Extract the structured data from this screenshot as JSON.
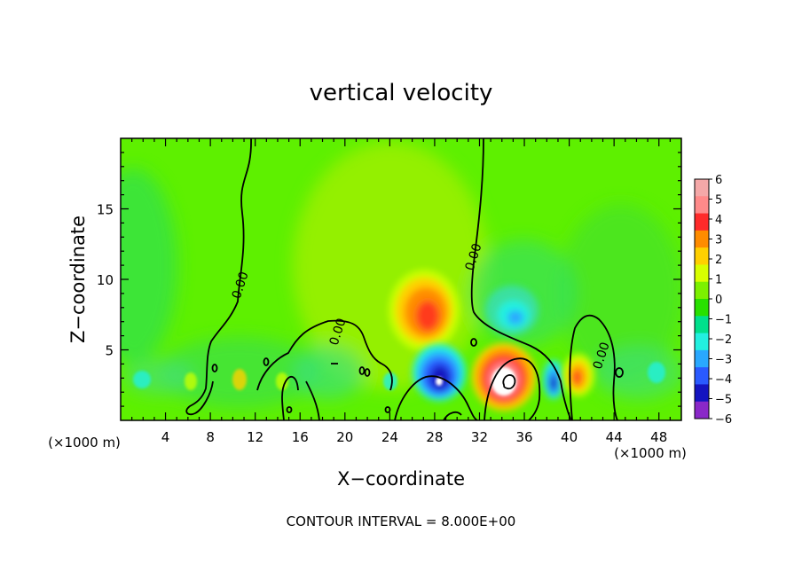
{
  "chart_data": {
    "type": "heatmap",
    "title": "vertical velocity",
    "xlabel": "X−coordinate",
    "ylabel": "Z−coordinate",
    "x_unit_left": "(×1000 m)",
    "x_unit_right": "(×1000 m)",
    "xlim": [
      0,
      50
    ],
    "ylim": [
      0,
      20
    ],
    "xticks": [
      4,
      8,
      12,
      16,
      20,
      24,
      28,
      32,
      36,
      40,
      44,
      48
    ],
    "yticks": [
      5,
      10,
      15
    ],
    "contour_labels": [
      {
        "text": "0.00",
        "x": 11,
        "y": 9.5
      },
      {
        "text": "0.00",
        "x": 19.7,
        "y": 6.2
      },
      {
        "text": "0.00",
        "x": 31.8,
        "y": 11.5
      },
      {
        "text": "0.00",
        "x": 43.2,
        "y": 4.5
      }
    ],
    "footnote": "CONTOUR INTERVAL = 8.000E+00",
    "colorbar": {
      "levels": [
        "6",
        "5",
        "4",
        "3",
        "2",
        "1",
        "0",
        "−1",
        "−2",
        "−3",
        "−4",
        "−5",
        "−6"
      ],
      "colors": [
        "#f4a8a8",
        "#ff8a8a",
        "#ff2a2a",
        "#ff8c00",
        "#ffd000",
        "#d8ff00",
        "#7cf000",
        "#28e000",
        "#00e08c",
        "#22f0e0",
        "#29a8ff",
        "#2a5aff",
        "#1414c0",
        "#8a28c8"
      ]
    },
    "features": [
      {
        "type": "updraft",
        "x": 27.5,
        "z": 8,
        "value": 3.5
      },
      {
        "type": "downdraft",
        "x": 29,
        "z": 3,
        "value": -5
      },
      {
        "type": "updraft",
        "x": 34,
        "z": 3,
        "value": 6
      },
      {
        "type": "downdraft",
        "x": 34.5,
        "z": 7.2,
        "value": -2
      },
      {
        "type": "downdraft",
        "x": 38.5,
        "z": 2.8,
        "value": -3.5
      },
      {
        "type": "updraft",
        "x": 40.8,
        "z": 3.3,
        "value": 3
      }
    ]
  }
}
